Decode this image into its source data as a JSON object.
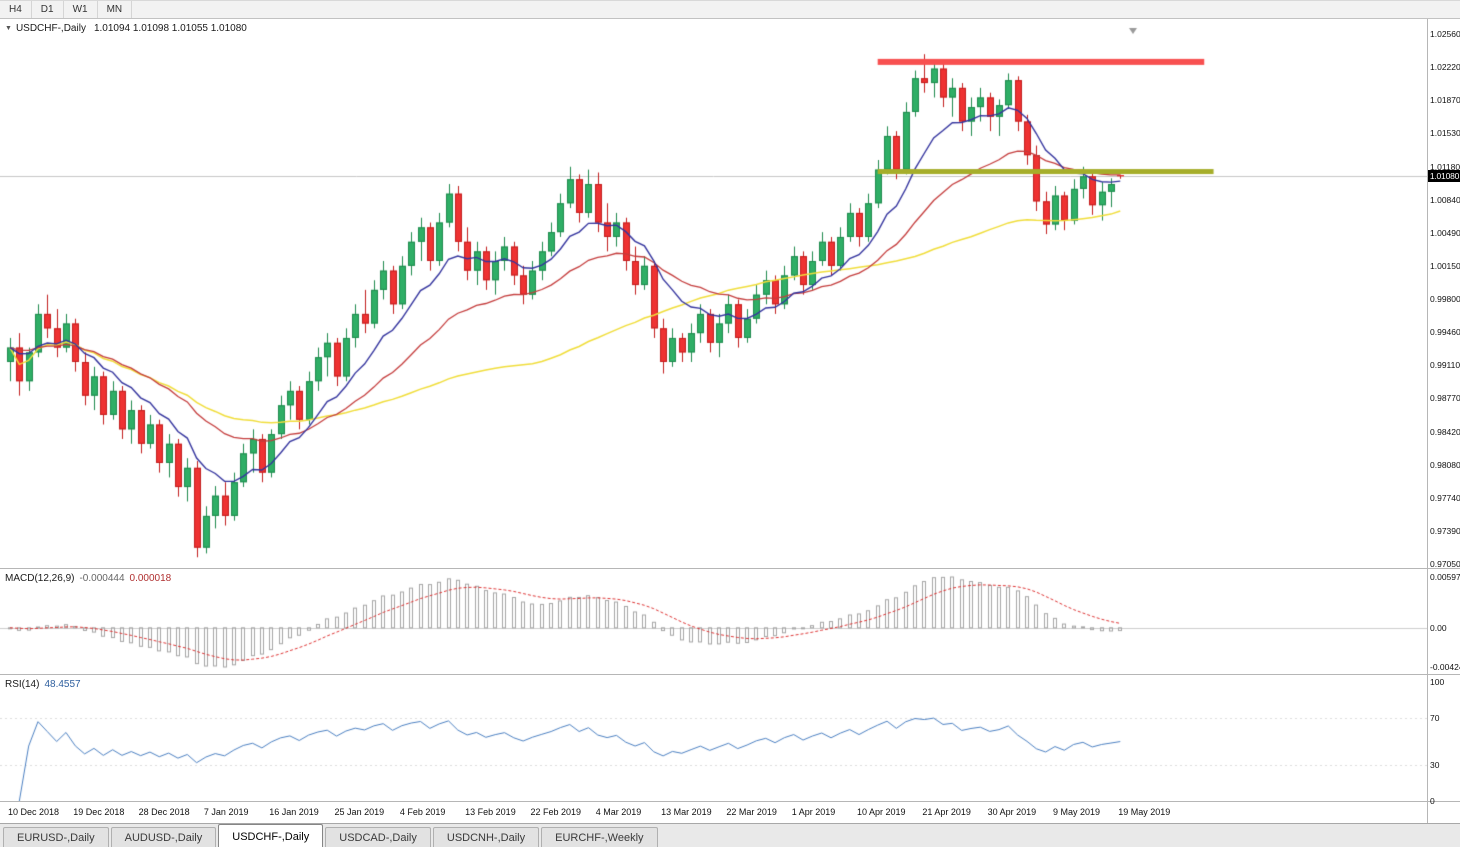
{
  "toolbar": {
    "timeframes": [
      "H4",
      "D1",
      "W1",
      "MN"
    ]
  },
  "chart_header": {
    "collapse_icon": "▼",
    "symbol_label": "USDCHF-,Daily",
    "ohlc": "1.01094 1.01098 1.01055 1.01080"
  },
  "colors": {
    "bull": "#2fae66",
    "bull_border": "#1e8a4d",
    "bear": "#ee3232",
    "bear_border": "#c21d1d",
    "ma_fast": "#34349e",
    "ma_medium": "#c43c3c",
    "ma_slow": "#f0dd3a",
    "macd_bar": "#a4a4a4",
    "macd_signal": "#dd3333",
    "rsi_line": "#4a7fc1",
    "bid_line": "#c6c6c6",
    "resistance": "#f85050",
    "support": "#a6ae2a",
    "badge_bg": "#000000",
    "badge_text": "#ffffff"
  },
  "chart_data": {
    "type": "candlestick",
    "symbol": "USDCHF",
    "timeframe": "Daily",
    "price_axis_labels": [
      "1.02560",
      "1.02220",
      "1.01870",
      "1.01530",
      "1.01180",
      "1.00840",
      "1.00490",
      "1.00150",
      "0.99800",
      "0.99460",
      "0.99110",
      "0.98770",
      "0.98420",
      "0.98080",
      "0.97740",
      "0.97390",
      "0.97050"
    ],
    "price_axis_max": 1.0256,
    "price_axis_min": 0.9705,
    "bid": {
      "price": 1.0108,
      "label": "1.01080"
    },
    "date_labels": [
      "10 Dec 2018",
      "19 Dec 2018",
      "28 Dec 2018",
      "7 Jan 2019",
      "16 Jan 2019",
      "25 Jan 2019",
      "4 Feb 2019",
      "13 Feb 2019",
      "22 Feb 2019",
      "4 Mar 2019",
      "13 Mar 2019",
      "22 Mar 2019",
      "1 Apr 2019",
      "10 Apr 2019",
      "21 Apr 2019",
      "30 Apr 2019",
      "9 May 2019",
      "19 May 2019"
    ],
    "candles_per_label": 7,
    "moving_averages": [
      {
        "name": "ma-slow",
        "period": 50,
        "method": "sma",
        "color": "#f0dd3a",
        "width": 1.5
      },
      {
        "name": "ma-medium",
        "period": 25,
        "method": "ema",
        "color": "#c43c3c",
        "width": 1.3
      },
      {
        "name": "ma-fast",
        "period": 10,
        "method": "ema",
        "color": "#34349e",
        "width": 1.4
      }
    ],
    "trend_lines": [
      {
        "name": "resistance",
        "price": 1.0227,
        "x_start_index": 93,
        "x_end_index": 128,
        "color": "#f85050",
        "thickness": 6
      },
      {
        "name": "support",
        "price": 1.0113,
        "x_start_index": 93,
        "x_end_index": 129,
        "color": "#a6ae2a",
        "thickness": 5
      }
    ],
    "candles": [
      [
        0.9915,
        0.994,
        0.9895,
        0.993
      ],
      [
        0.993,
        0.9945,
        0.988,
        0.9895
      ],
      [
        0.9895,
        0.993,
        0.9885,
        0.9925
      ],
      [
        0.9925,
        0.9975,
        0.992,
        0.9965
      ],
      [
        0.9965,
        0.9985,
        0.994,
        0.995
      ],
      [
        0.995,
        0.997,
        0.992,
        0.993
      ],
      [
        0.993,
        0.9965,
        0.9925,
        0.9955
      ],
      [
        0.9955,
        0.996,
        0.9905,
        0.9915
      ],
      [
        0.9915,
        0.9925,
        0.987,
        0.988
      ],
      [
        0.988,
        0.991,
        0.9865,
        0.99
      ],
      [
        0.99,
        0.9905,
        0.985,
        0.986
      ],
      [
        0.986,
        0.9895,
        0.9855,
        0.9885
      ],
      [
        0.9885,
        0.989,
        0.9835,
        0.9845
      ],
      [
        0.9845,
        0.9875,
        0.983,
        0.9865
      ],
      [
        0.9865,
        0.987,
        0.982,
        0.983
      ],
      [
        0.983,
        0.986,
        0.9825,
        0.985
      ],
      [
        0.985,
        0.9855,
        0.98,
        0.981
      ],
      [
        0.981,
        0.984,
        0.9795,
        0.983
      ],
      [
        0.983,
        0.9835,
        0.9775,
        0.9785
      ],
      [
        0.9785,
        0.9815,
        0.977,
        0.9805
      ],
      [
        0.9805,
        0.9812,
        0.9712,
        0.9722
      ],
      [
        0.9722,
        0.9765,
        0.9716,
        0.9755
      ],
      [
        0.9755,
        0.9786,
        0.9742,
        0.9776
      ],
      [
        0.9776,
        0.979,
        0.9745,
        0.9755
      ],
      [
        0.9755,
        0.98,
        0.975,
        0.979
      ],
      [
        0.979,
        0.983,
        0.9785,
        0.982
      ],
      [
        0.982,
        0.9845,
        0.98,
        0.9835
      ],
      [
        0.9835,
        0.984,
        0.979,
        0.98
      ],
      [
        0.98,
        0.9845,
        0.9795,
        0.984
      ],
      [
        0.984,
        0.988,
        0.9835,
        0.987
      ],
      [
        0.987,
        0.9895,
        0.9855,
        0.9885
      ],
      [
        0.9885,
        0.989,
        0.9845,
        0.9855
      ],
      [
        0.9855,
        0.9905,
        0.985,
        0.9895
      ],
      [
        0.9895,
        0.993,
        0.9885,
        0.992
      ],
      [
        0.992,
        0.9945,
        0.99,
        0.9935
      ],
      [
        0.9935,
        0.994,
        0.989,
        0.99
      ],
      [
        0.99,
        0.995,
        0.9895,
        0.994
      ],
      [
        0.994,
        0.9975,
        0.993,
        0.9965
      ],
      [
        0.9965,
        0.999,
        0.9945,
        0.9955
      ],
      [
        0.9955,
        1.0,
        0.995,
        0.999
      ],
      [
        0.999,
        1.002,
        0.998,
        1.001
      ],
      [
        1.001,
        1.0015,
        0.9965,
        0.9975
      ],
      [
        0.9975,
        1.0025,
        0.997,
        1.0015
      ],
      [
        1.0015,
        1.005,
        1.0005,
        1.004
      ],
      [
        1.004,
        1.0065,
        1.002,
        1.0055
      ],
      [
        1.0055,
        1.006,
        1.001,
        1.002
      ],
      [
        1.002,
        1.007,
        1.0015,
        1.006
      ],
      [
        1.006,
        1.01,
        1.0055,
        1.009
      ],
      [
        1.009,
        1.0098,
        1.003,
        1.004
      ],
      [
        1.004,
        1.0055,
        1.0,
        1.001
      ],
      [
        1.001,
        1.004,
        0.9995,
        1.003
      ],
      [
        1.003,
        1.0035,
        0.999,
        1.0
      ],
      [
        1.0,
        1.003,
        0.9985,
        1.002
      ],
      [
        1.002,
        1.0045,
        1.001,
        1.0035
      ],
      [
        1.0035,
        1.004,
        0.9995,
        1.0005
      ],
      [
        1.0005,
        1.0015,
        0.9975,
        0.9985
      ],
      [
        0.9985,
        1.002,
        0.998,
        1.001
      ],
      [
        1.001,
        1.004,
        1.0,
        1.003
      ],
      [
        1.003,
        1.006,
        1.0025,
        1.005
      ],
      [
        1.005,
        1.009,
        1.0045,
        1.008
      ],
      [
        1.008,
        1.0118,
        1.0075,
        1.0105
      ],
      [
        1.0105,
        1.011,
        1.006,
        1.007
      ],
      [
        1.007,
        1.0115,
        1.0065,
        1.01
      ],
      [
        1.01,
        1.0112,
        1.005,
        1.006
      ],
      [
        1.006,
        1.008,
        1.003,
        1.0045
      ],
      [
        1.0045,
        1.007,
        1.0035,
        1.006
      ],
      [
        1.006,
        1.0065,
        1.001,
        1.002
      ],
      [
        1.002,
        1.0035,
        0.9985,
        0.9995
      ],
      [
        0.9995,
        1.0025,
        0.999,
        1.0015
      ],
      [
        1.0015,
        1.002,
        0.994,
        0.995
      ],
      [
        0.995,
        0.996,
        0.9903,
        0.9915
      ],
      [
        0.9915,
        0.995,
        0.991,
        0.994
      ],
      [
        0.994,
        0.9945,
        0.9915,
        0.9925
      ],
      [
        0.9925,
        0.9955,
        0.9915,
        0.9945
      ],
      [
        0.9945,
        0.9975,
        0.9935,
        0.9965
      ],
      [
        0.9965,
        0.997,
        0.9925,
        0.9935
      ],
      [
        0.9935,
        0.9965,
        0.992,
        0.9955
      ],
      [
        0.9955,
        0.9985,
        0.9945,
        0.9975
      ],
      [
        0.9975,
        0.998,
        0.993,
        0.994
      ],
      [
        0.994,
        0.997,
        0.9935,
        0.996
      ],
      [
        0.996,
        0.9995,
        0.9955,
        0.9985
      ],
      [
        0.9985,
        1.001,
        0.9975,
        1.0
      ],
      [
        1.0,
        1.0005,
        0.9965,
        0.9975
      ],
      [
        0.9975,
        1.0015,
        0.997,
        1.0005
      ],
      [
        1.0005,
        1.0035,
        1.0,
        1.0025
      ],
      [
        1.0025,
        1.003,
        0.9985,
        0.9995
      ],
      [
        0.9995,
        1.003,
        0.999,
        1.002
      ],
      [
        1.002,
        1.005,
        1.0015,
        1.004
      ],
      [
        1.004,
        1.0045,
        1.0005,
        1.0015
      ],
      [
        1.0015,
        1.0055,
        1.001,
        1.0045
      ],
      [
        1.0045,
        1.008,
        1.004,
        1.007
      ],
      [
        1.007,
        1.0075,
        1.0035,
        1.0045
      ],
      [
        1.0045,
        1.009,
        1.004,
        1.008
      ],
      [
        1.008,
        1.0125,
        1.0075,
        1.0115
      ],
      [
        1.0115,
        1.016,
        1.011,
        1.015
      ],
      [
        1.015,
        1.0155,
        1.0105,
        1.0115
      ],
      [
        1.0115,
        1.0185,
        1.011,
        1.0175
      ],
      [
        1.0175,
        1.0218,
        1.017,
        1.021
      ],
      [
        1.021,
        1.0235,
        1.0195,
        1.0205
      ],
      [
        1.0205,
        1.0228,
        1.019,
        1.022
      ],
      [
        1.022,
        1.0226,
        1.018,
        1.019
      ],
      [
        1.019,
        1.021,
        1.017,
        1.02
      ],
      [
        1.02,
        1.0205,
        1.0155,
        1.0165
      ],
      [
        1.0165,
        1.019,
        1.015,
        1.018
      ],
      [
        1.018,
        1.02,
        1.0165,
        1.019
      ],
      [
        1.019,
        1.0195,
        1.0155,
        1.017
      ],
      [
        1.017,
        1.0188,
        1.015,
        1.0182
      ],
      [
        1.0182,
        1.0215,
        1.0178,
        1.0208
      ],
      [
        1.0208,
        1.0212,
        1.0155,
        1.0165
      ],
      [
        1.0165,
        1.0172,
        1.012,
        1.013
      ],
      [
        1.013,
        1.014,
        1.0072,
        1.0082
      ],
      [
        1.0082,
        1.0092,
        1.0048,
        1.0058
      ],
      [
        1.0058,
        1.0098,
        1.0052,
        1.0088
      ],
      [
        1.0088,
        1.0092,
        1.0052,
        1.0062
      ],
      [
        1.0062,
        1.0105,
        1.0058,
        1.0095
      ],
      [
        1.0095,
        1.0118,
        1.0085,
        1.0108
      ],
      [
        1.0108,
        1.0112,
        1.0068,
        1.0078
      ],
      [
        1.0078,
        1.0102,
        1.0062,
        1.0092
      ],
      [
        1.0092,
        1.0106,
        1.0076,
        1.01
      ],
      [
        1.01094,
        1.01098,
        1.01055,
        1.0108
      ]
    ],
    "indicators": {
      "macd": {
        "label": "MACD(12,26,9)",
        "value_main": "-0.000444",
        "value_signal": "0.000018",
        "fast_period": 12,
        "slow_period": 26,
        "signal_period": 9,
        "scale_labels": [
          "0.00597",
          "0.00",
          "-0.00424"
        ]
      },
      "rsi": {
        "label": "RSI(14)",
        "value": "48.4557",
        "period": 14,
        "scale_labels": [
          "100",
          "70",
          "30",
          "0"
        ],
        "levels": [
          70,
          30
        ]
      }
    }
  },
  "bottom_tabs": {
    "tabs": [
      {
        "label": "EURUSD-,Daily",
        "active": false
      },
      {
        "label": "AUDUSD-,Daily",
        "active": false
      },
      {
        "label": "USDCHF-,Daily",
        "active": true
      },
      {
        "label": "USDCAD-,Daily",
        "active": false
      },
      {
        "label": "USDCNH-,Daily",
        "active": false
      },
      {
        "label": "EURCHF-,Weekly",
        "active": false
      }
    ]
  }
}
